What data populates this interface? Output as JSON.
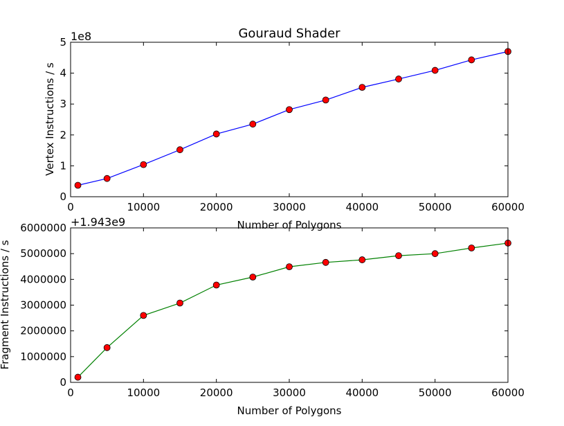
{
  "figure_title": "Gouraud Shader",
  "chart_data": [
    {
      "type": "line",
      "title": "Gouraud Shader",
      "xlabel": "Number of Polygons",
      "ylabel": "Vertex Instructions / s",
      "y_offset_text": "1e8",
      "xlim": [
        0,
        60000
      ],
      "ylim": [
        0,
        5
      ],
      "grid": false,
      "x": [
        1000,
        5000,
        10000,
        15000,
        20000,
        25000,
        30000,
        35000,
        40000,
        45000,
        50000,
        55000,
        60000
      ],
      "series": [
        {
          "values": [
            0.37,
            0.59,
            1.04,
            1.52,
            2.03,
            2.35,
            2.82,
            3.13,
            3.54,
            3.81,
            4.09,
            4.43,
            4.7
          ],
          "line_color": "#0000ff",
          "marker_color": "#ff0000"
        }
      ],
      "xticks": [
        0,
        10000,
        20000,
        30000,
        40000,
        50000,
        60000
      ],
      "xtick_labels": [
        "0",
        "10000",
        "20000",
        "30000",
        "40000",
        "50000",
        "60000"
      ],
      "yticks": [
        0,
        1,
        2,
        3,
        4,
        5
      ],
      "ytick_labels": [
        "0",
        "1",
        "2",
        "3",
        "4",
        "5"
      ]
    },
    {
      "type": "line",
      "xlabel": "Number of Polygons",
      "ylabel": "Fragment Instructions / s",
      "y_offset_text": "+1.943e9",
      "xlim": [
        0,
        60000
      ],
      "ylim": [
        0,
        6000000
      ],
      "grid": false,
      "x": [
        1000,
        5000,
        10000,
        15000,
        20000,
        25000,
        30000,
        35000,
        40000,
        45000,
        50000,
        55000,
        60000
      ],
      "series": [
        {
          "values": [
            200000,
            1350000,
            2600000,
            3080000,
            3780000,
            4090000,
            4490000,
            4660000,
            4760000,
            4920000,
            5000000,
            5220000,
            5410000
          ],
          "line_color": "#008000",
          "marker_color": "#ff0000"
        }
      ],
      "xticks": [
        0,
        10000,
        20000,
        30000,
        40000,
        50000,
        60000
      ],
      "xtick_labels": [
        "0",
        "10000",
        "20000",
        "30000",
        "40000",
        "50000",
        "60000"
      ],
      "yticks": [
        0,
        1000000,
        2000000,
        3000000,
        4000000,
        5000000,
        6000000
      ],
      "ytick_labels": [
        "0",
        "1000000",
        "2000000",
        "3000000",
        "4000000",
        "5000000",
        "6000000"
      ]
    }
  ]
}
